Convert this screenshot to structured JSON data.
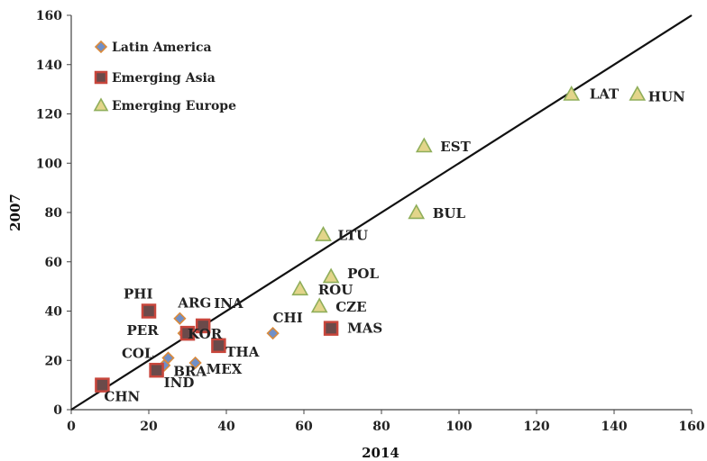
{
  "chart_data": {
    "type": "scatter",
    "title": "",
    "xlabel": "2014",
    "ylabel": "2007",
    "xlim": [
      0,
      160
    ],
    "ylim": [
      0,
      160
    ],
    "xticks": [
      0,
      20,
      40,
      60,
      80,
      100,
      120,
      140,
      160
    ],
    "yticks": [
      0,
      20,
      40,
      60,
      80,
      100,
      120,
      140,
      160
    ],
    "grid": false,
    "legend_position": "top-left",
    "reference_line": {
      "from": [
        0,
        0
      ],
      "to": [
        160,
        160
      ]
    },
    "series": [
      {
        "name": "Latin America",
        "marker": "diamond",
        "fill": "#6f8fc8",
        "stroke": "#d98a3c",
        "points": [
          {
            "label": "ARG",
            "x": 28,
            "y": 37
          },
          {
            "label": "PER",
            "x": 29,
            "y": 31
          },
          {
            "label": "COL",
            "x": 25,
            "y": 21
          },
          {
            "label": "BRA",
            "x": 24,
            "y": 18
          },
          {
            "label": "MEX",
            "x": 32,
            "y": 19
          },
          {
            "label": "CHI",
            "x": 52,
            "y": 31
          }
        ]
      },
      {
        "name": "Emerging Asia",
        "marker": "square",
        "fill": "#6b4a4a",
        "stroke": "#c8463c",
        "points": [
          {
            "label": "PHI",
            "x": 20,
            "y": 40
          },
          {
            "label": "INA",
            "x": 34,
            "y": 34
          },
          {
            "label": "KOR",
            "x": 30,
            "y": 31
          },
          {
            "label": "THA",
            "x": 38,
            "y": 26
          },
          {
            "label": "IND",
            "x": 22,
            "y": 16
          },
          {
            "label": "CHN",
            "x": 8,
            "y": 10
          },
          {
            "label": "MAS",
            "x": 67,
            "y": 33
          }
        ]
      },
      {
        "name": "Emerging Europe",
        "marker": "triangle",
        "fill": "#e3d58a",
        "stroke": "#8fae5a",
        "points": [
          {
            "label": "LAT",
            "x": 129,
            "y": 128
          },
          {
            "label": "HUN",
            "x": 146,
            "y": 128
          },
          {
            "label": "EST",
            "x": 91,
            "y": 107
          },
          {
            "label": "BUL",
            "x": 89,
            "y": 80
          },
          {
            "label": "LTU",
            "x": 65,
            "y": 71
          },
          {
            "label": "POL",
            "x": 67,
            "y": 54
          },
          {
            "label": "ROU",
            "x": 59,
            "y": 49
          },
          {
            "label": "CZE",
            "x": 64,
            "y": 42
          }
        ]
      }
    ]
  }
}
